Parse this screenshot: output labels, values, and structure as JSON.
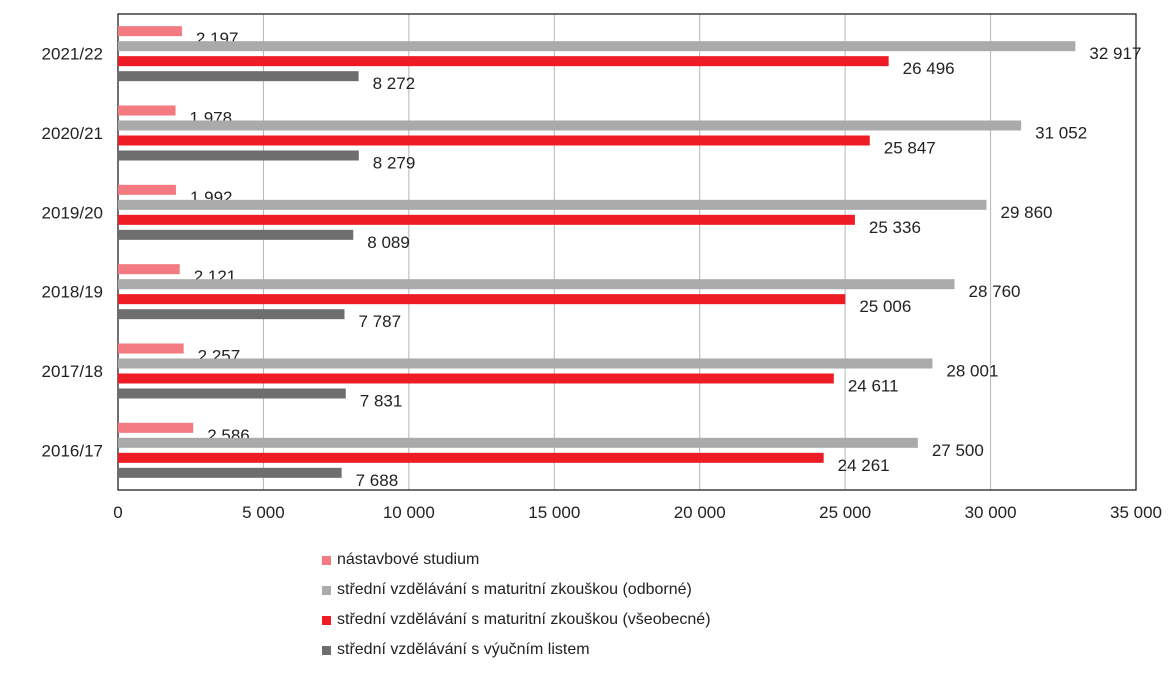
{
  "chart_data": {
    "type": "bar",
    "orientation": "horizontal",
    "categories": [
      "2021/22",
      "2020/21",
      "2019/20",
      "2018/19",
      "2017/18",
      "2016/17"
    ],
    "series": [
      {
        "name": "nástavbové studium",
        "color": "#f27a80",
        "values": [
          2197,
          1978,
          1992,
          2121,
          2257,
          2586
        ],
        "labels": [
          "2 197",
          "1 978",
          "1 992",
          "2 121",
          "2 257",
          "2 586"
        ]
      },
      {
        "name": "střední vzdělávání s maturitní zkouškou (odborné)",
        "color": "#aaaaaa",
        "values": [
          32917,
          31052,
          29860,
          28760,
          28001,
          27500
        ],
        "labels": [
          "32 917",
          "31 052",
          "29 860",
          "28 760",
          "28 001",
          "27 500"
        ]
      },
      {
        "name": "střední vzdělávání s maturitní zkouškou (všeobecné)",
        "color": "#ee1c24",
        "values": [
          26496,
          25847,
          25336,
          25006,
          24611,
          24261
        ],
        "labels": [
          "26 496",
          "25 847",
          "25 336",
          "25 006",
          "24 611",
          "24 261"
        ]
      },
      {
        "name": "střední vzdělávání s výučním listem",
        "color": "#6e6e6e",
        "values": [
          8272,
          8279,
          8089,
          7787,
          7831,
          7688
        ],
        "labels": [
          "8 272",
          "8 279",
          "8 089",
          "7 787",
          "7 831",
          "7 688"
        ]
      }
    ],
    "xlim": [
      0,
      35000
    ],
    "xticks": [
      0,
      5000,
      10000,
      15000,
      20000,
      25000,
      30000,
      35000
    ],
    "xtick_labels": [
      "0",
      "5 000",
      "10 000",
      "15 000",
      "20 000",
      "25 000",
      "30 000",
      "35 000"
    ],
    "grid": "vertical",
    "legend_position": "bottom"
  }
}
